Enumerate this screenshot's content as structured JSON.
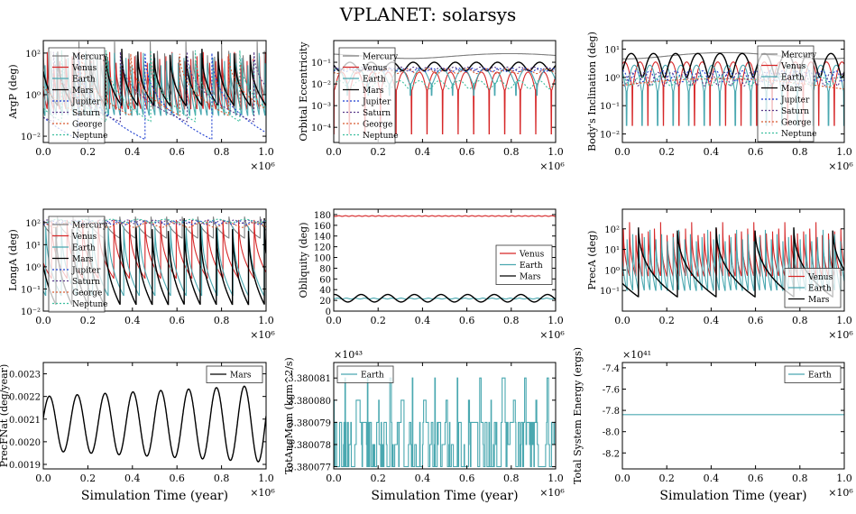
{
  "figure": {
    "title": "VPLANET: solarsys"
  },
  "colors": {
    "Mercury": "#7f7f7f",
    "Venus": "#d62728",
    "Earth": "#4aa8b0",
    "Mars": "#000000",
    "Jupiter": "#1f3fd0",
    "Saturn": "#5a3c8a",
    "George": "#d85a30",
    "Neptune": "#3fbf9f",
    "frame": "#000000",
    "grid": "#000000"
  },
  "chart_data": [
    {
      "type": "line",
      "scale": "log",
      "ylabel": "ArgP (deg)",
      "xlabel": "",
      "xlim": [
        0,
        1000000
      ],
      "ylim": [
        0.005,
        400
      ],
      "xticks": [
        "0.0",
        "0.2",
        "0.4",
        "0.6",
        "0.8",
        "1.0"
      ],
      "yticks": [
        {
          "v": 0.01,
          "label": "10⁻²"
        },
        {
          "v": 1,
          "label": "10⁰"
        },
        {
          "v": 100,
          "label": "10²"
        }
      ],
      "offset": "×10⁶",
      "legend": {
        "position": "left",
        "entries": [
          "Mercury",
          "Venus",
          "Earth",
          "Mars",
          "Jupiter",
          "Saturn",
          "George",
          "Neptune"
        ]
      },
      "series": [
        {
          "name": "Mercury",
          "style": "solid",
          "pattern": "sawtooth",
          "period": 32000,
          "top": 360,
          "bottom": 1
        },
        {
          "name": "Venus",
          "style": "solid",
          "pattern": "sawtooth",
          "period": 28000,
          "top": 360,
          "bottom": 0.2
        },
        {
          "name": "Earth",
          "style": "solid",
          "pattern": "sawtooth",
          "period": 26000,
          "top": 360,
          "bottom": 0.1
        },
        {
          "name": "Mars",
          "style": "solid",
          "pattern": "sawtooth",
          "period": 72000,
          "top": 360,
          "bottom": 0.3
        },
        {
          "name": "Jupiter",
          "style": "dotted",
          "pattern": "sawtooth",
          "period": 300000,
          "top": 360,
          "bottom": 0.007
        },
        {
          "name": "Saturn",
          "style": "dotted",
          "pattern": "sawtooth",
          "period": 300000,
          "top": 300,
          "bottom": 0.05
        },
        {
          "name": "George",
          "style": "dotted",
          "pattern": "sawtooth",
          "period": 220000,
          "top": 250,
          "bottom": 0.1
        },
        {
          "name": "Neptune",
          "style": "dotted",
          "pattern": "sawtooth",
          "period": 200000,
          "top": 300,
          "bottom": 0.05
        }
      ]
    },
    {
      "type": "line",
      "scale": "log",
      "ylabel": "Orbital Eccentricity",
      "xlabel": "",
      "xlim": [
        0,
        1000000
      ],
      "ylim": [
        2e-05,
        1
      ],
      "xticks": [
        "0.0",
        "0.2",
        "0.4",
        "0.6",
        "0.8",
        "1.0"
      ],
      "yticks": [
        {
          "v": 0.0001,
          "label": "10⁻⁴"
        },
        {
          "v": 0.001,
          "label": "10⁻³"
        },
        {
          "v": 0.01,
          "label": "10⁻²"
        },
        {
          "v": 0.1,
          "label": "10⁻¹"
        }
      ],
      "offset": "×10⁶",
      "legend": {
        "position": "left",
        "entries": [
          "Mercury",
          "Venus",
          "Earth",
          "Mars",
          "Jupiter",
          "Saturn",
          "George",
          "Neptune"
        ]
      },
      "series": [
        {
          "name": "Mercury",
          "style": "solid",
          "pattern": "wave",
          "period": 900000,
          "base": 0.2,
          "amp": 0.05
        },
        {
          "name": "Venus",
          "style": "solid",
          "pattern": "wave",
          "period": 70000,
          "base": 0.02,
          "amp": 0.015,
          "dip": 5e-05
        },
        {
          "name": "Earth",
          "style": "solid",
          "pattern": "wave",
          "period": 95000,
          "base": 0.03,
          "amp": 0.02,
          "dip": 0.003
        },
        {
          "name": "Mars",
          "style": "solid",
          "pattern": "wave",
          "period": 95000,
          "base": 0.07,
          "amp": 0.03
        },
        {
          "name": "Jupiter",
          "style": "dotted",
          "pattern": "wave",
          "period": 60000,
          "base": 0.045,
          "amp": 0.008
        },
        {
          "name": "Saturn",
          "style": "dotted",
          "pattern": "wave",
          "period": 60000,
          "base": 0.05,
          "amp": 0.01
        },
        {
          "name": "George",
          "style": "dotted",
          "pattern": "wave",
          "period": 90000,
          "base": 0.04,
          "amp": 0.01
        },
        {
          "name": "Neptune",
          "style": "dotted",
          "pattern": "wave",
          "period": 90000,
          "base": 0.01,
          "amp": 0.004
        }
      ]
    },
    {
      "type": "line",
      "scale": "log",
      "ylabel": "Body's Inclination (deg)",
      "xlabel": "",
      "xlim": [
        0,
        1000000
      ],
      "ylim": [
        0.005,
        20
      ],
      "xticks": [
        "0.0",
        "0.2",
        "0.4",
        "0.6",
        "0.8",
        "1.0"
      ],
      "yticks": [
        {
          "v": 0.01,
          "label": "10⁻²"
        },
        {
          "v": 0.1,
          "label": "10⁻¹"
        },
        {
          "v": 1,
          "label": "10⁰"
        },
        {
          "v": 10,
          "label": "10¹"
        }
      ],
      "offset": "×10⁶",
      "legend": {
        "position": "right",
        "entries": [
          "Mercury",
          "Venus",
          "Earth",
          "Mars",
          "Jupiter",
          "Saturn",
          "George",
          "Neptune"
        ]
      },
      "series": [
        {
          "name": "Mercury",
          "style": "solid",
          "pattern": "wave",
          "period": 900000,
          "base": 6,
          "amp": 1.5
        },
        {
          "name": "Venus",
          "style": "solid",
          "pattern": "wave",
          "period": 70000,
          "base": 2,
          "amp": 1.5,
          "dip": 0.02
        },
        {
          "name": "Earth",
          "style": "solid",
          "pattern": "wave",
          "period": 70000,
          "base": 1.5,
          "amp": 1.2,
          "dip": 0.02
        },
        {
          "name": "Mars",
          "style": "solid",
          "pattern": "wave",
          "period": 100000,
          "base": 4,
          "amp": 3
        },
        {
          "name": "Jupiter",
          "style": "dotted",
          "pattern": "wave",
          "period": 60000,
          "base": 1.2,
          "amp": 0.5
        },
        {
          "name": "Saturn",
          "style": "dotted",
          "pattern": "wave",
          "period": 60000,
          "base": 1.0,
          "amp": 0.5
        },
        {
          "name": "George",
          "style": "dotted",
          "pattern": "wave",
          "period": 1500000,
          "base": 0.6,
          "amp": 0.3
        },
        {
          "name": "Neptune",
          "style": "dotted",
          "pattern": "wave",
          "period": 90000,
          "base": 0.8,
          "amp": 0.3
        }
      ]
    },
    {
      "type": "line",
      "scale": "log",
      "ylabel": "LongA (deg)",
      "xlabel": "",
      "xlim": [
        0,
        1000000
      ],
      "ylim": [
        0.01,
        400
      ],
      "xticks": [
        "0.0",
        "0.2",
        "0.4",
        "0.6",
        "0.8",
        "1.0"
      ],
      "yticks": [
        {
          "v": 0.01,
          "label": "10⁻²"
        },
        {
          "v": 0.1,
          "label": "10⁻¹"
        },
        {
          "v": 1,
          "label": "10⁰"
        },
        {
          "v": 10,
          "label": "10¹"
        },
        {
          "v": 100,
          "label": "10²"
        }
      ],
      "offset": "×10⁶",
      "legend": {
        "position": "left",
        "entries": [
          "Mercury",
          "Venus",
          "Earth",
          "Mars",
          "Jupiter",
          "Saturn",
          "George",
          "Neptune"
        ]
      },
      "series": [
        {
          "name": "Mercury",
          "style": "solid",
          "pattern": "sawtooth",
          "period": 70000,
          "top": 360,
          "bottom": 20
        },
        {
          "name": "Venus",
          "style": "solid",
          "pattern": "sawtooth",
          "period": 70000,
          "top": 360,
          "bottom": 0.3
        },
        {
          "name": "Earth",
          "style": "solid",
          "pattern": "sawtooth",
          "period": 70000,
          "top": 360,
          "bottom": 0.05
        },
        {
          "name": "Mars",
          "style": "solid",
          "pattern": "sawtooth",
          "period": 72000,
          "top": 360,
          "bottom": 0.02
        },
        {
          "name": "Jupiter",
          "style": "dotted",
          "pattern": "wave",
          "period": 60000,
          "base": 100,
          "amp": 20
        },
        {
          "name": "Saturn",
          "style": "dotted",
          "pattern": "wave",
          "period": 60000,
          "base": 110,
          "amp": 20
        },
        {
          "name": "George",
          "style": "dotted",
          "pattern": "wave",
          "period": 120000,
          "base": 80,
          "amp": 20
        },
        {
          "name": "Neptune",
          "style": "dotted",
          "pattern": "wave",
          "period": 120000,
          "base": 120,
          "amp": 20
        }
      ]
    },
    {
      "type": "line",
      "scale": "linear",
      "ylabel": "Obliquity (deg)",
      "xlabel": "",
      "xlim": [
        0,
        1000000
      ],
      "ylim": [
        0,
        190
      ],
      "xticks": [
        "0.0",
        "0.2",
        "0.4",
        "0.6",
        "0.8",
        "1.0"
      ],
      "yticks": [
        {
          "v": 0,
          "label": "0"
        },
        {
          "v": 20,
          "label": "20"
        },
        {
          "v": 40,
          "label": "40"
        },
        {
          "v": 60,
          "label": "60"
        },
        {
          "v": 80,
          "label": "80"
        },
        {
          "v": 100,
          "label": "100"
        },
        {
          "v": 120,
          "label": "120"
        },
        {
          "v": 140,
          "label": "140"
        },
        {
          "v": 160,
          "label": "160"
        },
        {
          "v": 180,
          "label": "180"
        }
      ],
      "offset": "×10⁶",
      "legend": {
        "position": "right",
        "entries": [
          "Venus",
          "Earth",
          "Mars"
        ]
      },
      "series": [
        {
          "name": "Venus",
          "style": "solid",
          "pattern": "wave",
          "period": 30000,
          "base": 177.3,
          "amp": 0.6
        },
        {
          "name": "Earth",
          "style": "solid",
          "pattern": "wave",
          "period": 41000,
          "base": 23.4,
          "amp": 0.8
        },
        {
          "name": "Mars",
          "style": "solid",
          "pattern": "wave",
          "period": 120000,
          "base": 24,
          "amp": 7
        }
      ]
    },
    {
      "type": "line",
      "scale": "log",
      "ylabel": "PrecA (deg)",
      "xlabel": "",
      "xlim": [
        0,
        1000000
      ],
      "ylim": [
        0.01,
        900
      ],
      "xticks": [
        "0.0",
        "0.2",
        "0.4",
        "0.6",
        "0.8",
        "1.0"
      ],
      "yticks": [
        {
          "v": 0.1,
          "label": "10⁻¹"
        },
        {
          "v": 1,
          "label": "10⁰"
        },
        {
          "v": 10,
          "label": "10¹"
        },
        {
          "v": 100,
          "label": "10²"
        }
      ],
      "offset": "×10⁶",
      "legend": {
        "position": "bottom-right",
        "entries": [
          "Venus",
          "Earth",
          "Mars"
        ]
      },
      "series": [
        {
          "name": "Venus",
          "style": "solid",
          "pattern": "sawtooth",
          "period": 28000,
          "top": 360,
          "bottom": 0.5
        },
        {
          "name": "Earth",
          "style": "solid",
          "pattern": "sawtooth",
          "period": 26000,
          "top": 360,
          "bottom": 0.1
        },
        {
          "name": "Mars",
          "style": "solid",
          "pattern": "sawtooth",
          "period": 175000,
          "top": 360,
          "bottom": 0.05
        }
      ]
    },
    {
      "type": "line",
      "scale": "linear",
      "ylabel": "PrecFNat (deg/year)",
      "xlabel": "Simulation Time (year)",
      "xlim": [
        0,
        1000000
      ],
      "ylim": [
        0.00188,
        0.00235
      ],
      "xticks": [
        "0.0",
        "0.2",
        "0.4",
        "0.6",
        "0.8",
        "1.0"
      ],
      "yticks": [
        {
          "v": 0.0019,
          "label": "0.0019"
        },
        {
          "v": 0.002,
          "label": "0.0020"
        },
        {
          "v": 0.0021,
          "label": "0.0021"
        },
        {
          "v": 0.0022,
          "label": "0.0022"
        },
        {
          "v": 0.0023,
          "label": "0.0023"
        }
      ],
      "offset": "×10⁶",
      "legend": {
        "position": "top-right",
        "entries": [
          "Mars"
        ]
      },
      "series": [
        {
          "name": "Mars",
          "style": "solid",
          "pattern": "growwave",
          "period": 125000,
          "base": 0.00208,
          "amp0": 0.00012,
          "amp1": 0.00017
        }
      ]
    },
    {
      "type": "line",
      "scale": "linear",
      "ylabel": "TotAngMom (kgm^2/s)",
      "xlabel": "Simulation Time (year)",
      "xlim": [
        0,
        1000000
      ],
      "ylim": [
        3.3800769,
        3.3800817
      ],
      "xticks": [
        "0.0",
        "0.2",
        "0.4",
        "0.6",
        "0.8",
        "1.0"
      ],
      "yticks": [
        {
          "v": 3.380077,
          "label": "3.380077"
        },
        {
          "v": 3.380078,
          "label": "3.380078"
        },
        {
          "v": 3.380079,
          "label": "3.380079"
        },
        {
          "v": 3.38008,
          "label": "3.380080"
        },
        {
          "v": 3.380081,
          "label": "3.380081"
        }
      ],
      "offset": "×10⁶",
      "multiplier": "×10⁴³",
      "legend": {
        "position": "top-left",
        "entries": [
          "Earth"
        ]
      },
      "series": [
        {
          "name": "Earth",
          "style": "solid",
          "pattern": "step",
          "levels": [
            3.380077,
            3.380078,
            3.380079,
            3.38008,
            3.380081
          ]
        }
      ]
    },
    {
      "type": "line",
      "scale": "linear",
      "ylabel": "Total System Energy (ergs)",
      "xlabel": "Simulation Time (year)",
      "xlim": [
        0,
        1000000
      ],
      "ylim": [
        -8.35,
        -7.35
      ],
      "xticks": [
        "0.0",
        "0.2",
        "0.4",
        "0.6",
        "0.8",
        "1.0"
      ],
      "yticks": [
        {
          "v": -8.2,
          "label": "-8.2"
        },
        {
          "v": -8.0,
          "label": "-8.0"
        },
        {
          "v": -7.8,
          "label": "-7.8"
        },
        {
          "v": -7.6,
          "label": "-7.6"
        },
        {
          "v": -7.4,
          "label": "-7.4"
        }
      ],
      "offset": "×10⁶",
      "multiplier": "×10⁴¹",
      "legend": {
        "position": "top-right",
        "entries": [
          "Earth"
        ]
      },
      "series": [
        {
          "name": "Earth",
          "style": "solid",
          "pattern": "const",
          "value": -7.84
        }
      ]
    }
  ]
}
